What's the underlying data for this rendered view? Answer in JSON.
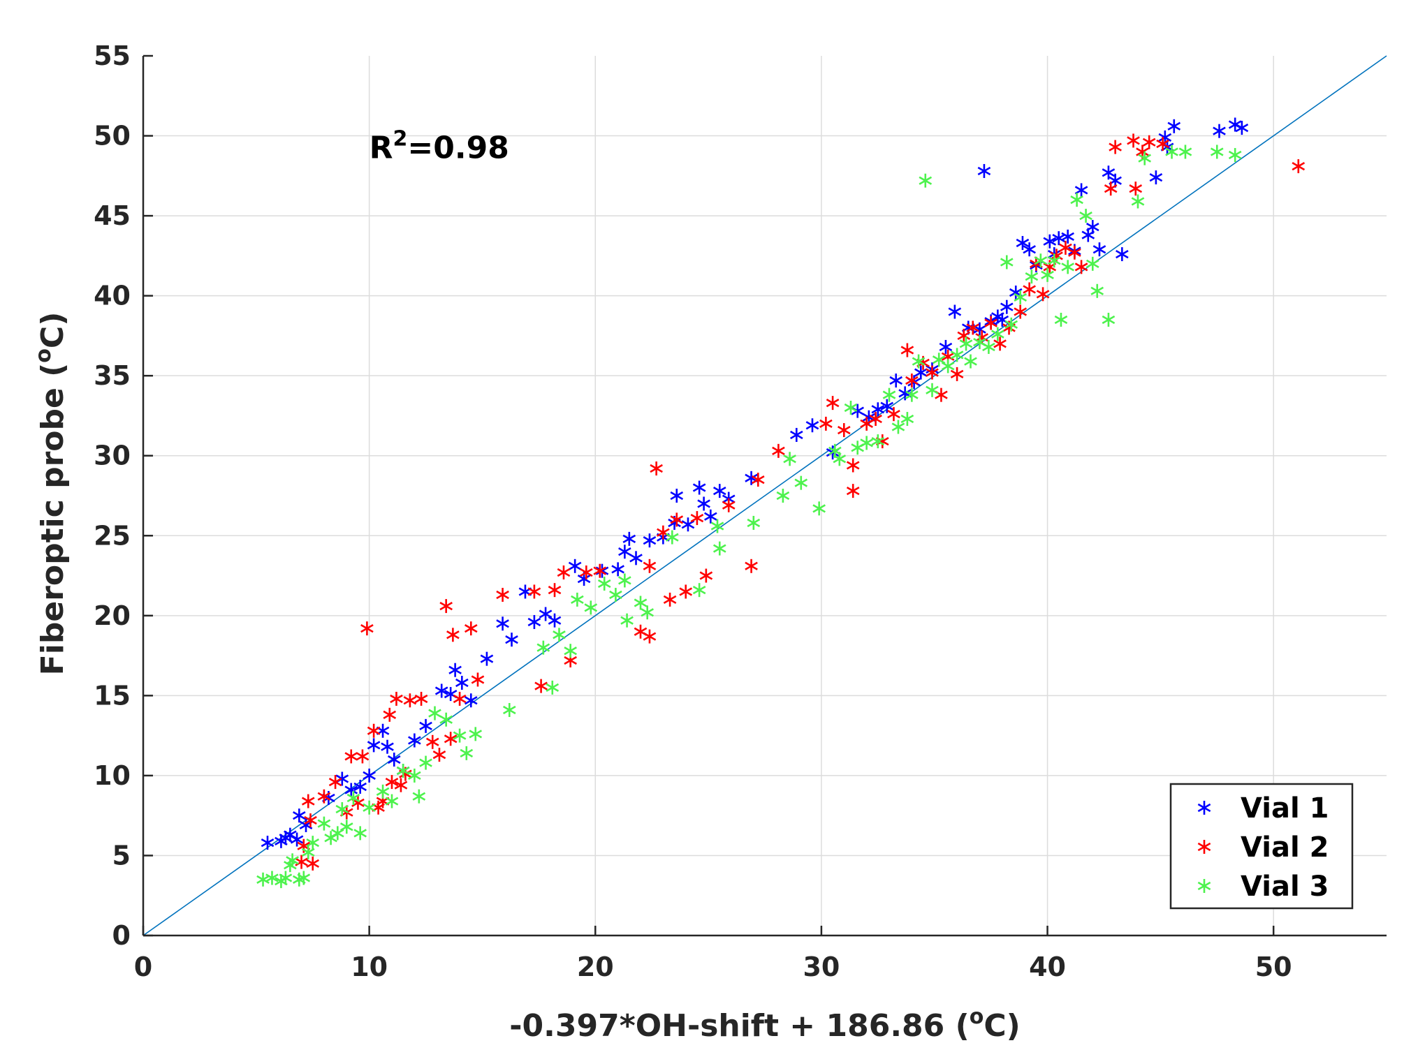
{
  "chart_data": {
    "type": "scatter",
    "title": "",
    "xlabel_main": "-0.397*OH-shift + 186.86 (",
    "xlabel_sup": "o",
    "xlabel_end": "C)",
    "ylabel_main": "Fiberoptic probe (",
    "ylabel_sup": "o",
    "ylabel_end": "C)",
    "xlim": [
      0,
      55
    ],
    "ylim": [
      0,
      55
    ],
    "xticks": [
      0,
      10,
      20,
      30,
      40,
      50
    ],
    "yticks": [
      0,
      5,
      10,
      15,
      20,
      25,
      30,
      35,
      40,
      45,
      50,
      55
    ],
    "grid": true,
    "annotation": {
      "base": "R",
      "sup": "2",
      "rest": "=0.98",
      "x": 10,
      "y": 48.6
    },
    "fit_line": {
      "slope": 1,
      "intercept": 0,
      "color": "#0072BD"
    },
    "legend_position": "bottom-right",
    "series": [
      {
        "name": "Vial 1",
        "color": "#0000FF",
        "points": [
          [
            5.5,
            5.8
          ],
          [
            6.1,
            5.9
          ],
          [
            6.3,
            6.1
          ],
          [
            6.5,
            6.3
          ],
          [
            6.8,
            6.0
          ],
          [
            6.9,
            7.5
          ],
          [
            7.2,
            6.9
          ],
          [
            8.2,
            8.6
          ],
          [
            8.8,
            9.8
          ],
          [
            9.2,
            9.1
          ],
          [
            9.6,
            9.3
          ],
          [
            10.0,
            10.0
          ],
          [
            10.2,
            11.9
          ],
          [
            10.6,
            12.8
          ],
          [
            10.8,
            11.8
          ],
          [
            11.1,
            11.0
          ],
          [
            11.5,
            10.3
          ],
          [
            12.0,
            12.2
          ],
          [
            12.5,
            13.1
          ],
          [
            13.2,
            15.3
          ],
          [
            13.6,
            15.1
          ],
          [
            13.8,
            16.6
          ],
          [
            14.1,
            15.8
          ],
          [
            14.5,
            14.7
          ],
          [
            15.2,
            17.3
          ],
          [
            15.9,
            19.5
          ],
          [
            16.3,
            18.5
          ],
          [
            16.9,
            21.5
          ],
          [
            17.3,
            19.6
          ],
          [
            17.8,
            20.1
          ],
          [
            18.2,
            19.7
          ],
          [
            19.1,
            23.1
          ],
          [
            19.5,
            22.3
          ],
          [
            20.3,
            22.8
          ],
          [
            21.0,
            22.9
          ],
          [
            21.3,
            24.0
          ],
          [
            21.5,
            24.8
          ],
          [
            21.8,
            23.6
          ],
          [
            22.4,
            24.7
          ],
          [
            23.0,
            24.9
          ],
          [
            23.5,
            25.8
          ],
          [
            23.6,
            27.5
          ],
          [
            24.1,
            25.7
          ],
          [
            24.6,
            28.0
          ],
          [
            24.8,
            27.0
          ],
          [
            25.1,
            26.2
          ],
          [
            25.5,
            27.8
          ],
          [
            25.9,
            27.3
          ],
          [
            26.9,
            28.6
          ],
          [
            28.9,
            31.3
          ],
          [
            29.6,
            31.9
          ],
          [
            30.5,
            30.2
          ],
          [
            31.6,
            32.8
          ],
          [
            32.1,
            32.4
          ],
          [
            32.5,
            32.9
          ],
          [
            32.9,
            33.1
          ],
          [
            33.3,
            34.7
          ],
          [
            33.7,
            33.9
          ],
          [
            34.1,
            34.6
          ],
          [
            34.4,
            35.2
          ],
          [
            34.9,
            35.4
          ],
          [
            35.5,
            36.8
          ],
          [
            35.9,
            39.0
          ],
          [
            36.5,
            38.0
          ],
          [
            37.0,
            37.9
          ],
          [
            37.2,
            47.8
          ],
          [
            37.5,
            38.4
          ],
          [
            37.8,
            38.7
          ],
          [
            38.0,
            38.5
          ],
          [
            38.2,
            39.3
          ],
          [
            38.6,
            40.2
          ],
          [
            38.9,
            43.3
          ],
          [
            39.2,
            42.9
          ],
          [
            39.5,
            41.9
          ],
          [
            40.1,
            43.4
          ],
          [
            40.3,
            42.6
          ],
          [
            40.5,
            43.6
          ],
          [
            40.9,
            43.7
          ],
          [
            41.2,
            42.8
          ],
          [
            41.5,
            46.6
          ],
          [
            41.8,
            43.8
          ],
          [
            42.0,
            44.3
          ],
          [
            42.3,
            42.9
          ],
          [
            42.7,
            47.7
          ],
          [
            43.0,
            47.2
          ],
          [
            43.3,
            42.6
          ],
          [
            44.8,
            47.4
          ],
          [
            45.2,
            49.9
          ],
          [
            45.3,
            49.3
          ],
          [
            45.6,
            50.6
          ],
          [
            47.6,
            50.3
          ],
          [
            48.3,
            50.7
          ],
          [
            48.6,
            50.5
          ]
        ]
      },
      {
        "name": "Vial 2",
        "color": "#FF0000",
        "points": [
          [
            7.0,
            4.6
          ],
          [
            7.1,
            5.6
          ],
          [
            7.3,
            8.4
          ],
          [
            7.4,
            7.2
          ],
          [
            7.5,
            4.5
          ],
          [
            8.0,
            8.7
          ],
          [
            8.5,
            9.6
          ],
          [
            9.0,
            7.7
          ],
          [
            9.2,
            11.2
          ],
          [
            9.5,
            8.3
          ],
          [
            9.7,
            11.2
          ],
          [
            9.9,
            19.2
          ],
          [
            10.2,
            12.8
          ],
          [
            10.4,
            8.0
          ],
          [
            10.6,
            8.4
          ],
          [
            10.9,
            13.8
          ],
          [
            11.0,
            9.6
          ],
          [
            11.2,
            14.8
          ],
          [
            11.4,
            9.4
          ],
          [
            11.6,
            10.1
          ],
          [
            11.8,
            14.7
          ],
          [
            12.3,
            14.8
          ],
          [
            12.8,
            12.1
          ],
          [
            13.1,
            11.3
          ],
          [
            13.4,
            20.6
          ],
          [
            13.6,
            12.3
          ],
          [
            13.7,
            18.8
          ],
          [
            14.0,
            14.8
          ],
          [
            14.5,
            19.2
          ],
          [
            14.8,
            16.0
          ],
          [
            15.9,
            21.3
          ],
          [
            17.3,
            21.5
          ],
          [
            17.6,
            15.6
          ],
          [
            18.2,
            21.6
          ],
          [
            18.6,
            22.7
          ],
          [
            18.9,
            17.2
          ],
          [
            19.6,
            22.7
          ],
          [
            20.2,
            22.8
          ],
          [
            22.0,
            19.0
          ],
          [
            22.4,
            23.1
          ],
          [
            22.4,
            18.7
          ],
          [
            22.7,
            29.2
          ],
          [
            23.0,
            25.2
          ],
          [
            23.3,
            21.0
          ],
          [
            23.6,
            26.0
          ],
          [
            24.0,
            21.5
          ],
          [
            24.5,
            26.1
          ],
          [
            24.9,
            22.5
          ],
          [
            25.9,
            26.9
          ],
          [
            26.9,
            23.1
          ],
          [
            27.2,
            28.5
          ],
          [
            28.1,
            30.3
          ],
          [
            30.2,
            32.0
          ],
          [
            30.5,
            33.3
          ],
          [
            31.0,
            31.6
          ],
          [
            31.4,
            29.4
          ],
          [
            31.4,
            27.8
          ],
          [
            32.0,
            32.0
          ],
          [
            32.4,
            32.3
          ],
          [
            32.7,
            30.9
          ],
          [
            33.2,
            32.6
          ],
          [
            33.8,
            36.6
          ],
          [
            34.0,
            34.7
          ],
          [
            34.5,
            35.8
          ],
          [
            34.9,
            35.2
          ],
          [
            35.3,
            33.8
          ],
          [
            35.6,
            36.2
          ],
          [
            36.0,
            35.1
          ],
          [
            36.3,
            37.5
          ],
          [
            36.7,
            38.0
          ],
          [
            37.1,
            37.4
          ],
          [
            37.5,
            38.3
          ],
          [
            37.9,
            37.0
          ],
          [
            38.3,
            38.0
          ],
          [
            38.8,
            39.0
          ],
          [
            39.2,
            40.4
          ],
          [
            39.5,
            42.0
          ],
          [
            39.8,
            40.1
          ],
          [
            40.1,
            41.8
          ],
          [
            40.4,
            42.5
          ],
          [
            40.8,
            43.0
          ],
          [
            41.2,
            42.7
          ],
          [
            41.5,
            41.8
          ],
          [
            42.8,
            46.7
          ],
          [
            43.0,
            49.3
          ],
          [
            43.8,
            49.7
          ],
          [
            43.9,
            46.7
          ],
          [
            44.2,
            49.0
          ],
          [
            44.5,
            49.6
          ],
          [
            45.1,
            49.5
          ],
          [
            51.1,
            48.1
          ]
        ]
      },
      {
        "name": "Vial 3",
        "color": "#4DF24D",
        "points": [
          [
            5.3,
            3.5
          ],
          [
            5.7,
            3.6
          ],
          [
            6.1,
            3.4
          ],
          [
            6.3,
            3.6
          ],
          [
            6.5,
            4.4
          ],
          [
            6.6,
            4.7
          ],
          [
            6.9,
            3.5
          ],
          [
            7.1,
            3.6
          ],
          [
            7.3,
            5.2
          ],
          [
            7.5,
            5.8
          ],
          [
            8.0,
            7.0
          ],
          [
            8.3,
            6.1
          ],
          [
            8.6,
            6.4
          ],
          [
            8.8,
            7.9
          ],
          [
            9.0,
            6.8
          ],
          [
            9.3,
            8.6
          ],
          [
            9.6,
            6.4
          ],
          [
            10.0,
            8.0
          ],
          [
            10.6,
            9.0
          ],
          [
            11.0,
            8.4
          ],
          [
            11.5,
            10.3
          ],
          [
            12.0,
            10.0
          ],
          [
            12.2,
            8.7
          ],
          [
            12.5,
            10.8
          ],
          [
            12.9,
            13.9
          ],
          [
            13.4,
            13.5
          ],
          [
            14.0,
            12.5
          ],
          [
            14.3,
            11.4
          ],
          [
            14.7,
            12.6
          ],
          [
            16.2,
            14.1
          ],
          [
            17.7,
            18.0
          ],
          [
            18.1,
            15.5
          ],
          [
            18.4,
            18.8
          ],
          [
            18.9,
            17.8
          ],
          [
            19.2,
            21.0
          ],
          [
            19.8,
            20.5
          ],
          [
            20.4,
            22.0
          ],
          [
            20.9,
            21.3
          ],
          [
            21.3,
            22.2
          ],
          [
            21.4,
            19.7
          ],
          [
            22.0,
            20.8
          ],
          [
            22.3,
            20.2
          ],
          [
            23.4,
            24.9
          ],
          [
            24.6,
            21.6
          ],
          [
            25.4,
            25.6
          ],
          [
            25.5,
            24.2
          ],
          [
            27.0,
            25.8
          ],
          [
            28.3,
            27.5
          ],
          [
            28.6,
            29.8
          ],
          [
            29.1,
            28.3
          ],
          [
            29.9,
            26.7
          ],
          [
            30.6,
            30.3
          ],
          [
            30.8,
            29.8
          ],
          [
            31.3,
            33.0
          ],
          [
            31.6,
            30.5
          ],
          [
            32.0,
            30.8
          ],
          [
            32.5,
            30.9
          ],
          [
            33.0,
            33.8
          ],
          [
            33.4,
            31.8
          ],
          [
            33.8,
            32.3
          ],
          [
            34.0,
            33.8
          ],
          [
            34.3,
            35.9
          ],
          [
            34.6,
            47.2
          ],
          [
            34.9,
            34.1
          ],
          [
            35.2,
            36.0
          ],
          [
            35.6,
            35.6
          ],
          [
            36.0,
            36.3
          ],
          [
            36.4,
            37.0
          ],
          [
            36.6,
            35.9
          ],
          [
            37.0,
            37.1
          ],
          [
            37.4,
            36.8
          ],
          [
            37.8,
            37.6
          ],
          [
            38.2,
            42.1
          ],
          [
            38.4,
            38.2
          ],
          [
            38.8,
            39.9
          ],
          [
            39.3,
            41.2
          ],
          [
            39.7,
            42.2
          ],
          [
            40.0,
            41.3
          ],
          [
            40.3,
            42.2
          ],
          [
            40.6,
            38.5
          ],
          [
            40.9,
            41.8
          ],
          [
            41.3,
            46.0
          ],
          [
            41.7,
            45.0
          ],
          [
            42.0,
            42.0
          ],
          [
            42.2,
            40.3
          ],
          [
            42.7,
            38.5
          ],
          [
            44.0,
            45.9
          ],
          [
            44.3,
            48.6
          ],
          [
            45.5,
            49.0
          ],
          [
            46.1,
            49.0
          ],
          [
            47.5,
            49.0
          ],
          [
            48.3,
            48.8
          ]
        ]
      }
    ]
  }
}
